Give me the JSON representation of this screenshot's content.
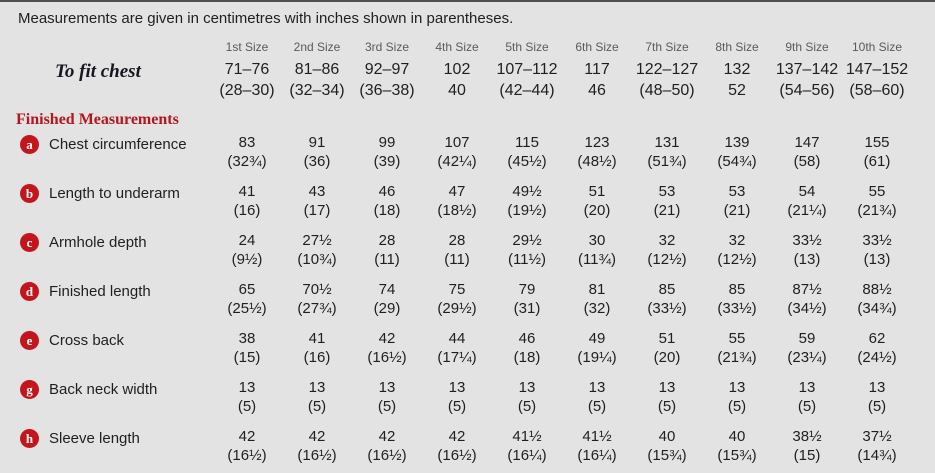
{
  "colors": {
    "background": "#e3e3e3",
    "top_rule": "#4f4f4f",
    "text": "#1f1f1f",
    "muted": "#5a5a5a",
    "accent_red": "#b5161d",
    "badge_red": "#c2161c",
    "badge_text": "#ffffff",
    "dark_serif": "#16161f"
  },
  "intro": "Measurements are given in centimetres with inches shown in parentheses.",
  "size_headers": [
    "1st Size",
    "2nd Size",
    "3rd Size",
    "4th Size",
    "5th Size",
    "6th Size",
    "7th Size",
    "8th Size",
    "9th Size",
    "10th Size"
  ],
  "to_fit_chest": {
    "label": "To fit chest",
    "cm": [
      "71–76",
      "81–86",
      "92–97",
      "102",
      "107–112",
      "117",
      "122–127",
      "132",
      "137–142",
      "147–152"
    ],
    "in": [
      "(28–30)",
      "(32–34)",
      "(36–38)",
      "40",
      "(42–44)",
      "46",
      "(48–50)",
      "52",
      "(54–56)",
      "(58–60)"
    ]
  },
  "section_heading": "Finished Measurements",
  "rows": [
    {
      "key": "a",
      "label": "Chest circumference",
      "cm": [
        "83",
        "91",
        "99",
        "107",
        "115",
        "123",
        "131",
        "139",
        "147",
        "155"
      ],
      "in": [
        "(32¾)",
        "(36)",
        "(39)",
        "(42¼)",
        "(45½)",
        "(48½)",
        "(51¾)",
        "(54¾)",
        "(58)",
        "(61)"
      ]
    },
    {
      "key": "b",
      "label": "Length to underarm",
      "cm": [
        "41",
        "43",
        "46",
        "47",
        "49½",
        "51",
        "53",
        "53",
        "54",
        "55"
      ],
      "in": [
        "(16)",
        "(17)",
        "(18)",
        "(18½)",
        "(19½)",
        "(20)",
        "(21)",
        "(21)",
        "(21¼)",
        "(21¾)"
      ]
    },
    {
      "key": "c",
      "label": "Armhole depth",
      "cm": [
        "24",
        "27½",
        "28",
        "28",
        "29½",
        "30",
        "32",
        "32",
        "33½",
        "33½"
      ],
      "in": [
        "(9½)",
        "(10¾)",
        "(11)",
        "(11)",
        "(11½)",
        "(11¾)",
        "(12½)",
        "(12½)",
        "(13)",
        "(13)"
      ]
    },
    {
      "key": "d",
      "label": "Finished length",
      "cm": [
        "65",
        "70½",
        "74",
        "75",
        "79",
        "81",
        "85",
        "85",
        "87½",
        "88½"
      ],
      "in": [
        "(25½)",
        "(27¾)",
        "(29)",
        "(29½)",
        "(31)",
        "(32)",
        "(33½)",
        "(33½)",
        "(34½)",
        "(34¾)"
      ]
    },
    {
      "key": "e",
      "label": "Cross back",
      "cm": [
        "38",
        "41",
        "42",
        "44",
        "46",
        "49",
        "51",
        "55",
        "59",
        "62"
      ],
      "in": [
        "(15)",
        "(16)",
        "(16½)",
        "(17¼)",
        "(18)",
        "(19¼)",
        "(20)",
        "(21¾)",
        "(23¼)",
        "(24½)"
      ]
    },
    {
      "key": "g",
      "label": "Back neck width",
      "cm": [
        "13",
        "13",
        "13",
        "13",
        "13",
        "13",
        "13",
        "13",
        "13",
        "13"
      ],
      "in": [
        "(5)",
        "(5)",
        "(5)",
        "(5)",
        "(5)",
        "(5)",
        "(5)",
        "(5)",
        "(5)",
        "(5)"
      ]
    },
    {
      "key": "h",
      "label": "Sleeve length",
      "cm": [
        "42",
        "42",
        "42",
        "42",
        "41½",
        "41½",
        "40",
        "40",
        "38½",
        "37½"
      ],
      "in": [
        "(16½)",
        "(16½)",
        "(16½)",
        "(16½)",
        "(16¼)",
        "(16¼)",
        "(15¾)",
        "(15¾)",
        "(15)",
        "(14¾)"
      ]
    }
  ]
}
